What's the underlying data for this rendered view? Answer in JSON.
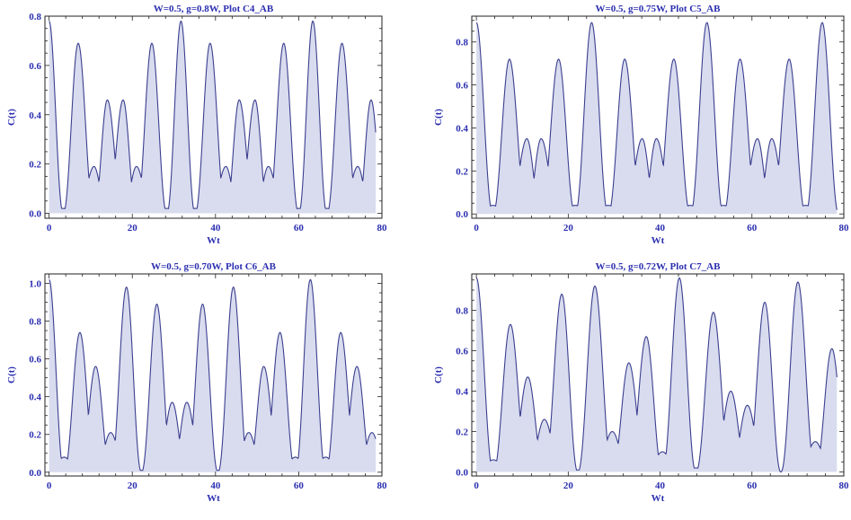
{
  "chart_data": [
    {
      "type": "area",
      "title": "W=0.5, g=0.8W, Plot C4_AB",
      "xlabel": "Wt",
      "ylabel": "C(t)",
      "xlim": [
        -1,
        80
      ],
      "ylim": [
        -0.02,
        0.8
      ],
      "xticks": [
        0,
        20,
        40,
        60,
        80
      ],
      "yticks": [
        0.0,
        0.2,
        0.4,
        0.6,
        0.8
      ],
      "yformat": 1,
      "grid": false,
      "color": "#3b3f8f",
      "fill": "#d9dcee",
      "peaks": [
        {
          "x": 0.0,
          "y": 0.78
        },
        {
          "x": 3.4,
          "y": 0.02
        },
        {
          "x": 7.0,
          "y": 0.69
        },
        {
          "x": 10.8,
          "y": 0.19
        },
        {
          "x": 14.0,
          "y": 0.46
        },
        {
          "x": 17.8,
          "y": 0.46
        },
        {
          "x": 21.0,
          "y": 0.19
        },
        {
          "x": 24.7,
          "y": 0.69
        },
        {
          "x": 28.3,
          "y": 0.02
        },
        {
          "x": 31.7,
          "y": 0.78
        },
        {
          "x": 35.1,
          "y": 0.02
        },
        {
          "x": 38.7,
          "y": 0.69
        },
        {
          "x": 42.5,
          "y": 0.19
        },
        {
          "x": 45.7,
          "y": 0.46
        },
        {
          "x": 49.5,
          "y": 0.46
        },
        {
          "x": 52.7,
          "y": 0.19
        },
        {
          "x": 56.4,
          "y": 0.69
        },
        {
          "x": 60.0,
          "y": 0.02
        },
        {
          "x": 63.4,
          "y": 0.78
        },
        {
          "x": 66.8,
          "y": 0.02
        },
        {
          "x": 70.4,
          "y": 0.69
        },
        {
          "x": 74.2,
          "y": 0.19
        },
        {
          "x": 77.4,
          "y": 0.46
        }
      ]
    },
    {
      "type": "area",
      "title": "W=0.5, g=0.75W, Plot C5_AB",
      "xlabel": "Wt",
      "ylabel": "C(t)",
      "xlim": [
        -1,
        80
      ],
      "ylim": [
        -0.02,
        0.92
      ],
      "xticks": [
        0,
        20,
        40,
        60,
        80
      ],
      "yticks": [
        0.0,
        0.2,
        0.4,
        0.6,
        0.8
      ],
      "yformat": 1,
      "grid": false,
      "color": "#3b3f8f",
      "fill": "#d9dcee",
      "peaks": [
        {
          "x": 0.0,
          "y": 0.89
        },
        {
          "x": 3.6,
          "y": 0.04
        },
        {
          "x": 7.2,
          "y": 0.72
        },
        {
          "x": 11.0,
          "y": 0.35
        },
        {
          "x": 14.1,
          "y": 0.35
        },
        {
          "x": 17.9,
          "y": 0.72
        },
        {
          "x": 21.5,
          "y": 0.04
        },
        {
          "x": 25.1,
          "y": 0.89
        },
        {
          "x": 28.7,
          "y": 0.04
        },
        {
          "x": 32.3,
          "y": 0.72
        },
        {
          "x": 36.1,
          "y": 0.35
        },
        {
          "x": 39.2,
          "y": 0.35
        },
        {
          "x": 43.0,
          "y": 0.72
        },
        {
          "x": 46.6,
          "y": 0.04
        },
        {
          "x": 50.2,
          "y": 0.89
        },
        {
          "x": 53.8,
          "y": 0.04
        },
        {
          "x": 57.4,
          "y": 0.72
        },
        {
          "x": 61.2,
          "y": 0.35
        },
        {
          "x": 64.3,
          "y": 0.35
        },
        {
          "x": 68.1,
          "y": 0.72
        },
        {
          "x": 71.7,
          "y": 0.04
        },
        {
          "x": 75.3,
          "y": 0.89
        }
      ]
    },
    {
      "type": "area",
      "title": "W=0.5, g=0.70W, Plot C6_AB",
      "xlabel": "Wt",
      "ylabel": "C(t)",
      "xlim": [
        -1,
        80
      ],
      "ylim": [
        -0.02,
        1.05
      ],
      "xticks": [
        0,
        20,
        40,
        60,
        80
      ],
      "yticks": [
        0.0,
        0.2,
        0.4,
        0.6,
        0.8,
        1.0
      ],
      "yformat": 1,
      "grid": false,
      "color": "#3b3f8f",
      "fill": "#d9dcee",
      "peaks": [
        {
          "x": 0.0,
          "y": 1.02
        },
        {
          "x": 3.6,
          "y": 0.08
        },
        {
          "x": 7.4,
          "y": 0.74
        },
        {
          "x": 11.2,
          "y": 0.56
        },
        {
          "x": 14.8,
          "y": 0.21
        },
        {
          "x": 18.6,
          "y": 0.98
        },
        {
          "x": 22.2,
          "y": 0.01
        },
        {
          "x": 25.9,
          "y": 0.89
        },
        {
          "x": 29.6,
          "y": 0.37
        },
        {
          "x": 33.1,
          "y": 0.37
        },
        {
          "x": 36.9,
          "y": 0.89
        },
        {
          "x": 40.6,
          "y": 0.01
        },
        {
          "x": 44.3,
          "y": 0.98
        },
        {
          "x": 48.0,
          "y": 0.21
        },
        {
          "x": 51.6,
          "y": 0.56
        },
        {
          "x": 55.5,
          "y": 0.74
        },
        {
          "x": 59.2,
          "y": 0.08
        },
        {
          "x": 62.8,
          "y": 1.02
        },
        {
          "x": 66.5,
          "y": 0.08
        },
        {
          "x": 70.1,
          "y": 0.74
        },
        {
          "x": 74.0,
          "y": 0.56
        },
        {
          "x": 77.6,
          "y": 0.21
        }
      ]
    },
    {
      "type": "area",
      "title": "W=0.5, g=0.72W, Plot C7_AB",
      "xlabel": "Wt",
      "ylabel": "C(t)",
      "xlim": [
        -1,
        80
      ],
      "ylim": [
        -0.02,
        0.98
      ],
      "xticks": [
        0,
        20,
        40,
        60,
        80
      ],
      "yticks": [
        0.0,
        0.2,
        0.4,
        0.6,
        0.8
      ],
      "yformat": 1,
      "grid": false,
      "color": "#3b3f8f",
      "fill": "#d9dcee",
      "peaks": [
        {
          "x": 0.0,
          "y": 0.96
        },
        {
          "x": 3.7,
          "y": 0.06
        },
        {
          "x": 7.4,
          "y": 0.73
        },
        {
          "x": 11.2,
          "y": 0.47
        },
        {
          "x": 14.8,
          "y": 0.26
        },
        {
          "x": 18.6,
          "y": 0.88
        },
        {
          "x": 22.1,
          "y": 0.01
        },
        {
          "x": 25.8,
          "y": 0.92
        },
        {
          "x": 29.6,
          "y": 0.2
        },
        {
          "x": 33.2,
          "y": 0.54
        },
        {
          "x": 37.0,
          "y": 0.67
        },
        {
          "x": 40.5,
          "y": 0.1
        },
        {
          "x": 44.2,
          "y": 0.96
        },
        {
          "x": 47.8,
          "y": 0.02
        },
        {
          "x": 51.6,
          "y": 0.79
        },
        {
          "x": 55.4,
          "y": 0.4
        },
        {
          "x": 59.0,
          "y": 0.33
        },
        {
          "x": 62.8,
          "y": 0.84
        },
        {
          "x": 66.3,
          "y": 0.0
        },
        {
          "x": 70.0,
          "y": 0.94
        },
        {
          "x": 73.8,
          "y": 0.15
        },
        {
          "x": 77.4,
          "y": 0.61
        }
      ]
    }
  ]
}
